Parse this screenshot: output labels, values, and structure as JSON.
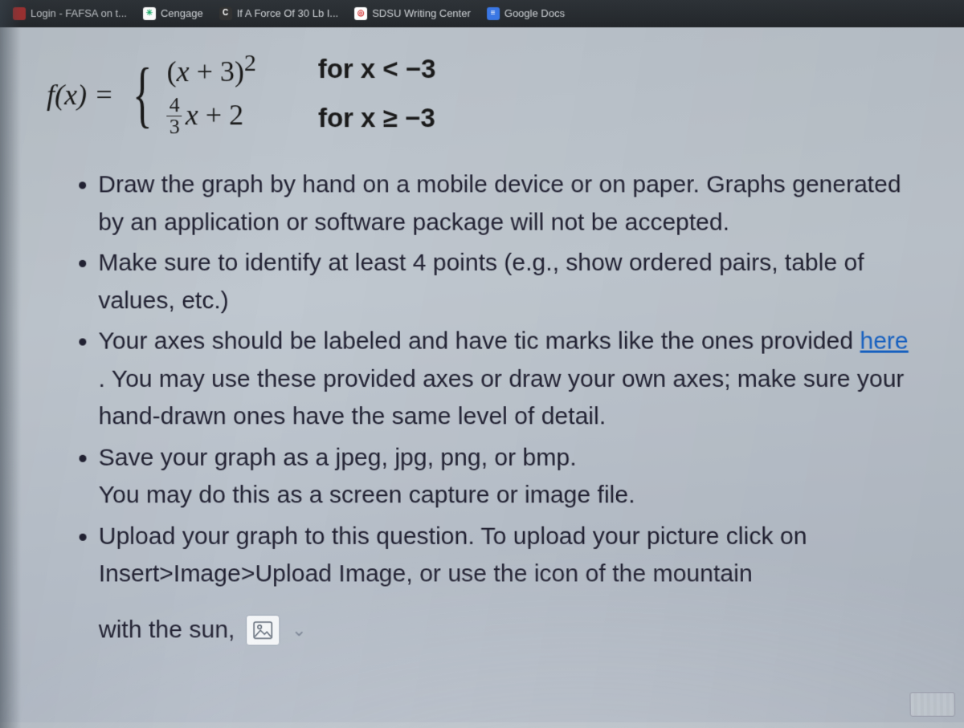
{
  "colors": {
    "bookmark_bar_bg": "#2a2e33",
    "bookmark_text": "#d0d4d8",
    "body_bg_top": "#b8c0c8",
    "body_bg_bottom": "#b0b8c4",
    "text": "#222233",
    "link": "#1864c7",
    "icon_border": "#9aa4b2"
  },
  "typography": {
    "body_font": "Segoe UI",
    "math_font": "Cambria Math",
    "body_size_pt": 22,
    "math_size_pt": 27
  },
  "bookmarks": [
    {
      "label": "Login - FAFSA on t...",
      "favicon_bg": "#a33",
      "favicon_text": "",
      "cut_left": true
    },
    {
      "label": "Cengage",
      "favicon_bg": "#ffffff",
      "favicon_text": "✳",
      "favicon_fg": "#1a6"
    },
    {
      "label": "If A Force Of 30 Lb I...",
      "favicon_bg": "#333",
      "favicon_text": "C",
      "favicon_fg": "#fff"
    },
    {
      "label": "SDSU Writing Center",
      "favicon_bg": "#ffffff",
      "favicon_text": "◎",
      "favicon_fg": "#c22"
    },
    {
      "label": "Google Docs",
      "favicon_bg": "#3b78e7",
      "favicon_text": "≡",
      "favicon_fg": "#fff"
    }
  ],
  "math": {
    "lhs": "f(x) =",
    "case1_expr_tex": "(x + 3)²",
    "case1_cond": "for x < −3",
    "case2_frac_num": "4",
    "case2_frac_den": "3",
    "case2_rest": "x + 2",
    "case2_cond": "for x ≥ −3"
  },
  "bullets": [
    "Draw the graph by hand on a mobile device or on paper. Graphs generated by an application or software package will not be accepted.",
    "Make sure to identify at least 4 points (e.g., show ordered pairs, table of values, etc.)",
    "Your axes should be labeled and have tic marks like the ones provided {{link}}. You may use these provided axes or draw your own axes; make sure your hand-drawn ones have the same level of detail.",
    "Save your graph as a jpeg, jpg, png, or bmp.\nYou may do this as a screen capture or image file.",
    "Upload your graph to this question. To upload your picture click on Insert>Image>Upload Image, or use the icon of the mountain"
  ],
  "link_text": "here ",
  "tail_text": "with the sun,",
  "image_icon_name": "image-upload-icon"
}
